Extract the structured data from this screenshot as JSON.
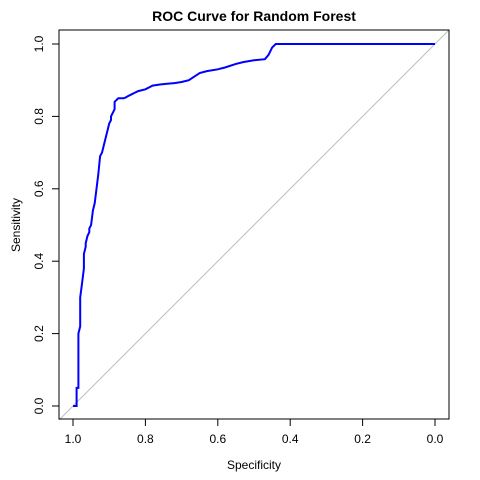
{
  "chart_data": {
    "type": "line",
    "title": "ROC Curve for Random Forest",
    "xlabel": "Specificity",
    "ylabel": "Sensitivity",
    "x_reversed": true,
    "xlim": [
      1.0,
      0.0
    ],
    "ylim": [
      0.0,
      1.0
    ],
    "x_ticks": [
      "1.0",
      "0.8",
      "0.6",
      "0.4",
      "0.2",
      "0.0"
    ],
    "y_ticks": [
      "0.0",
      "0.2",
      "0.4",
      "0.6",
      "0.8",
      "1.0"
    ],
    "grid": false,
    "colors": {
      "curve": "#0000ff",
      "reference": "#bebebe",
      "frame": "#000000"
    },
    "reference_line": {
      "from": [
        1.0,
        0.0
      ],
      "to": [
        0.0,
        1.0
      ]
    },
    "series": [
      {
        "x": [
          1.0,
          0.99,
          0.99,
          0.985,
          0.985,
          0.98,
          0.98,
          0.975,
          0.97,
          0.97,
          0.965,
          0.965,
          0.96,
          0.955,
          0.955,
          0.95,
          0.945,
          0.94,
          0.935,
          0.93,
          0.925,
          0.92,
          0.915,
          0.91,
          0.905,
          0.9,
          0.895,
          0.895,
          0.89,
          0.885,
          0.885,
          0.88,
          0.875,
          0.87,
          0.865,
          0.86,
          0.855,
          0.85,
          0.84,
          0.83,
          0.82,
          0.8,
          0.78,
          0.76,
          0.74,
          0.72,
          0.7,
          0.68,
          0.65,
          0.63,
          0.6,
          0.58,
          0.55,
          0.53,
          0.5,
          0.47,
          0.46,
          0.45,
          0.44,
          0.4,
          0.3,
          0.2,
          0.1,
          0.0
        ],
        "y": [
          0.0,
          0.0,
          0.05,
          0.05,
          0.2,
          0.22,
          0.3,
          0.34,
          0.38,
          0.42,
          0.44,
          0.45,
          0.47,
          0.48,
          0.49,
          0.5,
          0.54,
          0.56,
          0.6,
          0.64,
          0.69,
          0.7,
          0.72,
          0.74,
          0.76,
          0.78,
          0.79,
          0.8,
          0.81,
          0.82,
          0.84,
          0.845,
          0.85,
          0.85,
          0.85,
          0.85,
          0.852,
          0.855,
          0.86,
          0.865,
          0.87,
          0.875,
          0.885,
          0.888,
          0.89,
          0.892,
          0.895,
          0.9,
          0.92,
          0.925,
          0.93,
          0.935,
          0.945,
          0.95,
          0.955,
          0.958,
          0.97,
          0.99,
          1.0,
          1.0,
          1.0,
          1.0,
          1.0,
          1.0
        ]
      }
    ]
  }
}
